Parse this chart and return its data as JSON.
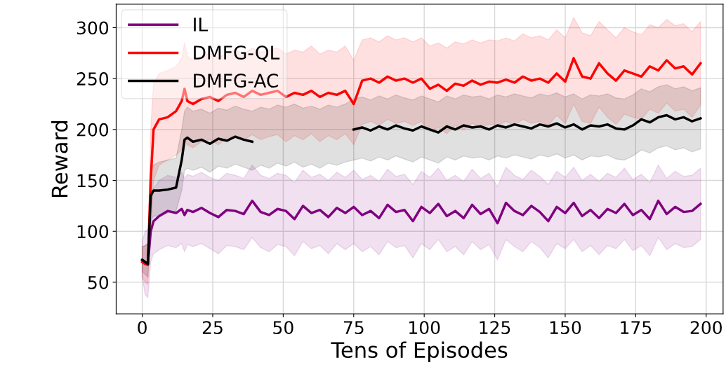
{
  "chart_data": {
    "type": "line",
    "xlabel": "Tens of Episodes",
    "ylabel": "Reward",
    "x": [
      0,
      1,
      2,
      3,
      4,
      6,
      9,
      12,
      14,
      15,
      16,
      18,
      21,
      24,
      27,
      30,
      33,
      36,
      39,
      42,
      45,
      48,
      51,
      54,
      57,
      60,
      63,
      66,
      69,
      72,
      75,
      78,
      81,
      84,
      87,
      90,
      93,
      96,
      99,
      102,
      105,
      108,
      111,
      114,
      117,
      120,
      123,
      126,
      129,
      132,
      135,
      138,
      141,
      144,
      147,
      150,
      153,
      156,
      159,
      162,
      165,
      168,
      171,
      174,
      177,
      180,
      183,
      186,
      189,
      192,
      195,
      198
    ],
    "series": [
      {
        "name": "IL",
        "color": "#800080",
        "values": [
          72,
          70,
          68,
          100,
          110,
          115,
          120,
          118,
          122,
          116,
          121,
          119,
          123,
          118,
          114,
          121,
          120,
          117,
          130,
          119,
          116,
          122,
          120,
          112,
          125,
          118,
          121,
          114,
          123,
          118,
          124,
          116,
          120,
          113,
          126,
          119,
          121,
          110,
          124,
          118,
          127,
          115,
          120,
          113,
          126,
          117,
          122,
          108,
          128,
          120,
          116,
          125,
          119,
          110,
          124,
          118,
          128,
          115,
          121,
          113,
          122,
          118,
          127,
          116,
          121,
          112,
          130,
          117,
          124,
          119,
          120,
          127
        ],
        "lower": [
          55,
          38,
          35,
          70,
          78,
          82,
          86,
          84,
          88,
          80,
          87,
          85,
          88,
          83,
          78,
          86,
          85,
          82,
          94,
          84,
          80,
          87,
          85,
          76,
          90,
          83,
          86,
          78,
          88,
          82,
          88,
          80,
          85,
          77,
          90,
          84,
          86,
          74,
          88,
          82,
          92,
          80,
          85,
          77,
          90,
          82,
          87,
          72,
          92,
          85,
          80,
          90,
          84,
          74,
          88,
          83,
          92,
          80,
          86,
          77,
          86,
          83,
          92,
          81,
          86,
          76,
          94,
          82,
          88,
          84,
          85,
          92
        ],
        "upper": [
          90,
          100,
          102,
          130,
          142,
          150,
          155,
          153,
          158,
          152,
          156,
          154,
          158,
          153,
          150,
          157,
          155,
          152,
          165,
          155,
          152,
          157,
          155,
          148,
          160,
          153,
          156,
          150,
          158,
          153,
          160,
          151,
          155,
          149,
          161,
          154,
          156,
          146,
          159,
          153,
          162,
          150,
          155,
          149,
          161,
          152,
          157,
          144,
          163,
          155,
          151,
          160,
          154,
          146,
          159,
          153,
          163,
          150,
          156,
          149,
          157,
          153,
          162,
          151,
          156,
          148,
          165,
          152,
          159,
          154,
          155,
          162
        ]
      },
      {
        "name": "DMFG-QL",
        "color": "#ff0000",
        "values": [
          70,
          68,
          67,
          150,
          200,
          210,
          212,
          218,
          228,
          240,
          228,
          225,
          230,
          232,
          228,
          234,
          236,
          232,
          238,
          234,
          236,
          238,
          232,
          236,
          234,
          238,
          232,
          236,
          234,
          238,
          225,
          248,
          250,
          246,
          252,
          248,
          250,
          246,
          250,
          240,
          244,
          238,
          245,
          243,
          248,
          244,
          247,
          246,
          249,
          246,
          252,
          248,
          250,
          246,
          255,
          247,
          270,
          252,
          250,
          265,
          255,
          248,
          258,
          255,
          252,
          262,
          258,
          268,
          260,
          262,
          254,
          265
        ],
        "lower": [
          55,
          50,
          48,
          100,
          150,
          165,
          170,
          175,
          180,
          190,
          185,
          182,
          188,
          190,
          185,
          192,
          193,
          190,
          195,
          190,
          193,
          195,
          188,
          194,
          190,
          196,
          188,
          194,
          190,
          196,
          185,
          205,
          208,
          204,
          210,
          206,
          208,
          204,
          208,
          198,
          202,
          196,
          204,
          200,
          206,
          202,
          205,
          204,
          208,
          204,
          210,
          206,
          208,
          204,
          214,
          206,
          225,
          208,
          206,
          222,
          212,
          205,
          215,
          212,
          210,
          220,
          216,
          226,
          218,
          220,
          212,
          224
        ],
        "upper": [
          85,
          86,
          88,
          200,
          245,
          255,
          258,
          262,
          270,
          285,
          272,
          268,
          272,
          275,
          270,
          276,
          278,
          274,
          280,
          276,
          278,
          280,
          274,
          278,
          276,
          282,
          274,
          278,
          276,
          282,
          268,
          288,
          290,
          286,
          292,
          288,
          290,
          286,
          290,
          282,
          285,
          280,
          286,
          284,
          288,
          285,
          288,
          287,
          290,
          287,
          294,
          290,
          292,
          288,
          298,
          290,
          310,
          295,
          292,
          306,
          298,
          290,
          300,
          296,
          293,
          303,
          300,
          308,
          302,
          304,
          296,
          306
        ]
      },
      {
        "name": "DMFG-AC",
        "color": "#000000",
        "values": [
          72,
          70,
          68,
          135,
          140,
          140,
          141,
          143,
          170,
          190,
          192,
          188,
          190,
          186,
          191,
          189,
          193,
          190,
          188,
          null,
          null,
          null,
          null,
          null,
          null,
          null,
          null,
          null,
          null,
          null,
          200,
          202,
          199,
          203,
          200,
          204,
          201,
          199,
          203,
          200,
          197,
          203,
          200,
          204,
          202,
          203,
          200,
          204,
          202,
          205,
          203,
          201,
          205,
          203,
          206,
          202,
          205,
          200,
          204,
          203,
          205,
          201,
          200,
          204,
          210,
          207,
          212,
          214,
          210,
          212,
          208,
          211
        ],
        "lower": [
          60,
          58,
          55,
          110,
          115,
          115,
          118,
          120,
          140,
          160,
          162,
          160,
          163,
          158,
          164,
          162,
          166,
          163,
          160,
          165,
          162,
          167,
          164,
          168,
          163,
          166,
          162,
          167,
          165,
          168,
          170,
          172,
          169,
          173,
          170,
          174,
          171,
          168,
          173,
          170,
          167,
          173,
          170,
          174,
          172,
          173,
          170,
          174,
          172,
          175,
          173,
          171,
          175,
          173,
          176,
          172,
          175,
          170,
          174,
          173,
          175,
          171,
          170,
          174,
          180,
          177,
          182,
          184,
          180,
          182,
          178,
          181
        ],
        "upper": [
          85,
          86,
          88,
          160,
          165,
          168,
          170,
          172,
          200,
          218,
          222,
          218,
          220,
          216,
          221,
          219,
          223,
          220,
          218,
          222,
          220,
          224,
          222,
          225,
          221,
          223,
          220,
          224,
          222,
          225,
          230,
          232,
          229,
          233,
          230,
          234,
          231,
          229,
          233,
          230,
          227,
          233,
          230,
          234,
          232,
          233,
          230,
          234,
          232,
          235,
          233,
          231,
          235,
          233,
          236,
          232,
          235,
          230,
          234,
          233,
          235,
          231,
          230,
          234,
          240,
          237,
          242,
          244,
          240,
          242,
          238,
          241
        ]
      }
    ],
    "xlim": [
      -9.25,
      206
    ],
    "ylim": [
      19,
      323
    ],
    "xticks": [
      0,
      25,
      50,
      75,
      100,
      125,
      150,
      175,
      200
    ],
    "yticks": [
      50,
      100,
      150,
      200,
      250,
      300
    ],
    "grid": true,
    "legend": "top left"
  }
}
